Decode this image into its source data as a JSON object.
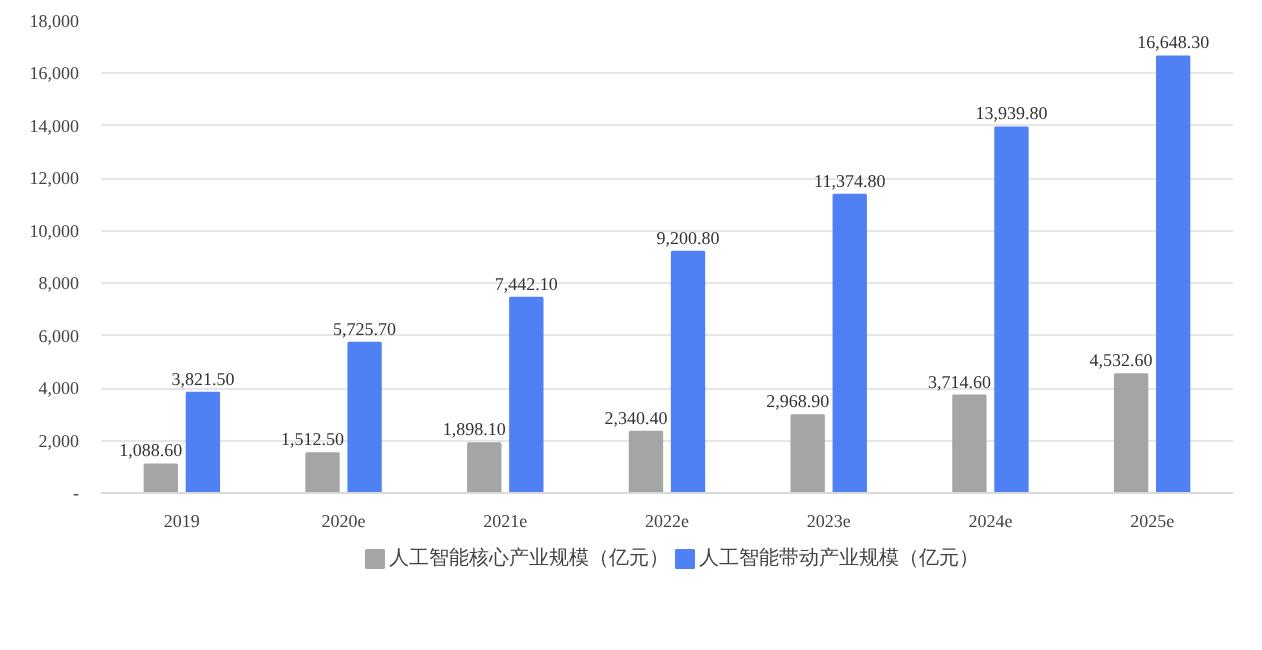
{
  "chart_data": {
    "type": "bar",
    "categories": [
      "2019",
      "2020e",
      "2021e",
      "2022e",
      "2023e",
      "2024e",
      "2025e"
    ],
    "series": [
      {
        "name": "人工智能核心产业规模（亿元）",
        "color": "#a5a5a5",
        "values": [
          1088.6,
          1512.5,
          1898.1,
          2340.4,
          2968.9,
          3714.6,
          4532.6
        ],
        "value_labels": [
          "1,088.60",
          "1,512.50",
          "1,898.10",
          "2,340.40",
          "2,968.90",
          "3,714.60",
          "4,532.60"
        ]
      },
      {
        "name": "人工智能带动产业规模（亿元）",
        "color": "#4f81f4",
        "values": [
          3821.5,
          5725.7,
          7442.1,
          9200.8,
          11374.8,
          13939.8,
          16648.3
        ],
        "value_labels": [
          "3,821.50",
          "5,725.70",
          "7,442.10",
          "9,200.80",
          "11,374.80",
          "13,939.80",
          "16,648.30"
        ]
      }
    ],
    "ylim": [
      0,
      18000
    ],
    "yticks": [
      {
        "value": 0,
        "label": "-"
      },
      {
        "value": 2000,
        "label": "2,000"
      },
      {
        "value": 4000,
        "label": "4,000"
      },
      {
        "value": 6000,
        "label": "6,000"
      },
      {
        "value": 8000,
        "label": "8,000"
      },
      {
        "value": 10000,
        "label": "10,000"
      },
      {
        "value": 12000,
        "label": "12,000"
      },
      {
        "value": 14000,
        "label": "14,000"
      },
      {
        "value": 16000,
        "label": "16,000"
      },
      {
        "value": 18000,
        "label": "18,000"
      }
    ],
    "grid": "y",
    "legend": "bottom"
  }
}
